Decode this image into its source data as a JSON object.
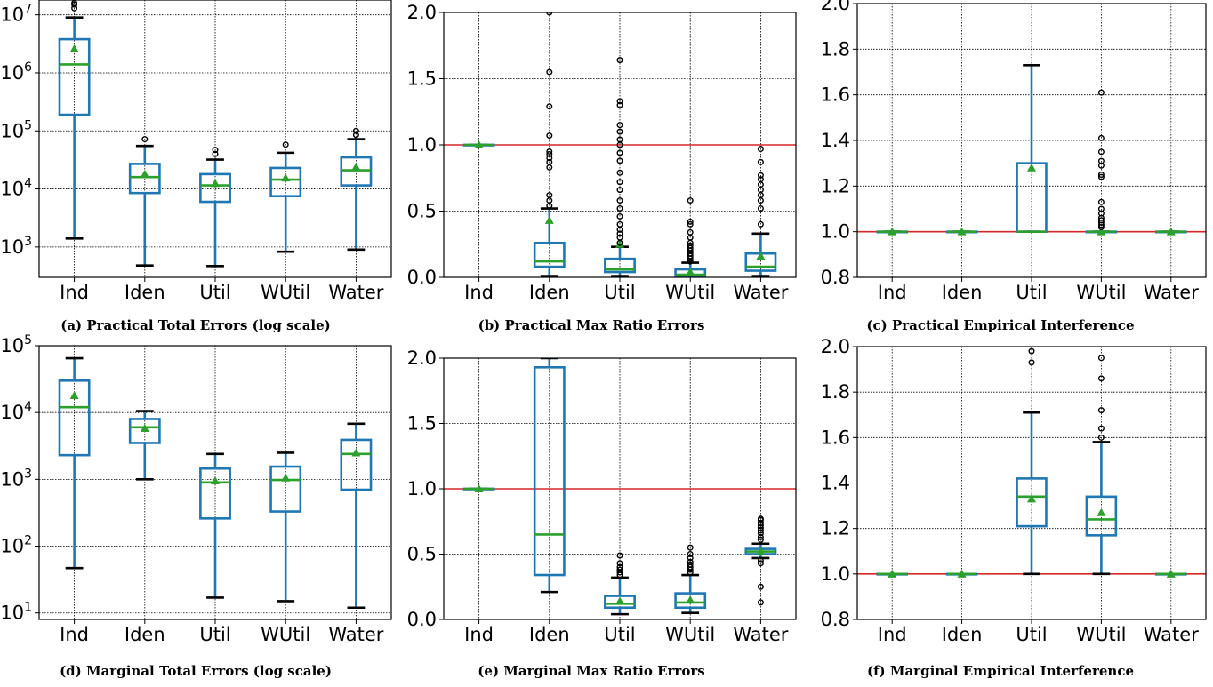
{
  "chart_data": [
    {
      "id": "a",
      "type": "box",
      "caption": "(a) Practical Total Errors (log scale)",
      "yscale": "log",
      "ylim": [
        300,
        18000000
      ],
      "yticks": [
        {
          "value": 1000,
          "base": "10",
          "exp": "3"
        },
        {
          "value": 10000,
          "base": "10",
          "exp": "4"
        },
        {
          "value": 100000,
          "base": "10",
          "exp": "5"
        },
        {
          "value": 1000000,
          "base": "10",
          "exp": "6"
        },
        {
          "value": 10000000,
          "base": "10",
          "exp": "7"
        }
      ],
      "ref_line": null,
      "grid": true,
      "categories": [
        "Ind",
        "Iden",
        "Util",
        "WUtil",
        "Water"
      ],
      "boxes": [
        {
          "whislo": 1400,
          "q1": 190000,
          "med": 1400000,
          "q3": 3800000,
          "whishi": 9000000,
          "mean": 2600000,
          "fliers": [
            13000000,
            15000000,
            16000000
          ]
        },
        {
          "whislo": 480,
          "q1": 8500,
          "med": 16000,
          "q3": 27000,
          "whishi": 55000,
          "mean": 18000,
          "fliers": [
            72000
          ]
        },
        {
          "whislo": 470,
          "q1": 6000,
          "med": 11500,
          "q3": 18000,
          "whishi": 32000,
          "mean": 12500,
          "fliers": [
            40000,
            47000
          ]
        },
        {
          "whislo": 830,
          "q1": 7500,
          "med": 14500,
          "q3": 23000,
          "whishi": 42000,
          "mean": 15500,
          "fliers": [
            58000
          ]
        },
        {
          "whislo": 900,
          "q1": 11500,
          "med": 21000,
          "q3": 35000,
          "whishi": 72000,
          "mean": 24000,
          "fliers": [
            85000,
            100000
          ]
        }
      ]
    },
    {
      "id": "b",
      "type": "box",
      "caption": "(b) Practical Max Ratio Errors",
      "yscale": "linear",
      "ylim": [
        0.0,
        2.0
      ],
      "yticks": [
        {
          "value": 0.0,
          "label": "0.0"
        },
        {
          "value": 0.5,
          "label": "0.5"
        },
        {
          "value": 1.0,
          "label": "1.0"
        },
        {
          "value": 1.5,
          "label": "1.5"
        },
        {
          "value": 2.0,
          "label": "2.0"
        }
      ],
      "ref_line": 1.0,
      "grid": true,
      "categories": [
        "Ind",
        "Iden",
        "Util",
        "WUtil",
        "Water"
      ],
      "boxes": [
        {
          "whislo": 1.0,
          "q1": 1.0,
          "med": 1.0,
          "q3": 1.0,
          "whishi": 1.0,
          "mean": 1.0,
          "fliers": []
        },
        {
          "whislo": 0.01,
          "q1": 0.08,
          "med": 0.12,
          "q3": 0.26,
          "whishi": 0.52,
          "mean": 0.43,
          "fliers": [
            0.54,
            0.58,
            0.62,
            0.83,
            0.87,
            0.9,
            0.93,
            0.95,
            1.07,
            1.29,
            1.55,
            2.0
          ]
        },
        {
          "whislo": 0.01,
          "q1": 0.04,
          "med": 0.06,
          "q3": 0.14,
          "whishi": 0.23,
          "mean": 0.25,
          "fliers": [
            0.26,
            0.3,
            0.33,
            0.36,
            0.4,
            0.46,
            0.52,
            0.58,
            0.66,
            0.72,
            0.79,
            0.88,
            0.94,
            1.0,
            1.04,
            1.1,
            1.15,
            1.3,
            1.33,
            1.64
          ]
        },
        {
          "whislo": 0.0,
          "q1": 0.01,
          "med": 0.02,
          "q3": 0.06,
          "whishi": 0.11,
          "mean": 0.04,
          "fliers": [
            0.12,
            0.14,
            0.16,
            0.18,
            0.2,
            0.22,
            0.24,
            0.26,
            0.3,
            0.34,
            0.4,
            0.42,
            0.58
          ]
        },
        {
          "whislo": 0.01,
          "q1": 0.05,
          "med": 0.08,
          "q3": 0.18,
          "whishi": 0.33,
          "mean": 0.16,
          "fliers": [
            0.4,
            0.52,
            0.58,
            0.62,
            0.66,
            0.7,
            0.74,
            0.77,
            0.87,
            0.97
          ]
        }
      ]
    },
    {
      "id": "c",
      "type": "box",
      "caption": "(c) Practical Empirical Interference",
      "yscale": "linear",
      "ylim": [
        0.8,
        2.0
      ],
      "yticks": [
        {
          "value": 0.8,
          "label": "0.8"
        },
        {
          "value": 1.0,
          "label": "1.0"
        },
        {
          "value": 1.2,
          "label": "1.2"
        },
        {
          "value": 1.4,
          "label": "1.4"
        },
        {
          "value": 1.6,
          "label": "1.6"
        },
        {
          "value": 1.8,
          "label": "1.8"
        },
        {
          "value": 2.0,
          "label": "2.0"
        }
      ],
      "ref_line": 1.0,
      "grid": true,
      "categories": [
        "Ind",
        "Iden",
        "Util",
        "WUtil",
        "Water"
      ],
      "boxes": [
        {
          "whislo": 1.0,
          "q1": 1.0,
          "med": 1.0,
          "q3": 1.0,
          "whishi": 1.0,
          "mean": 1.0,
          "fliers": []
        },
        {
          "whislo": 1.0,
          "q1": 1.0,
          "med": 1.0,
          "q3": 1.0,
          "whishi": 1.0,
          "mean": 1.0,
          "fliers": []
        },
        {
          "whislo": 1.0,
          "q1": 1.0,
          "med": 1.0,
          "q3": 1.3,
          "whishi": 1.73,
          "mean": 1.28,
          "fliers": []
        },
        {
          "whislo": 1.0,
          "q1": 1.0,
          "med": 1.0,
          "q3": 1.0,
          "whishi": 1.0,
          "mean": 1.0,
          "fliers": [
            1.02,
            1.03,
            1.04,
            1.05,
            1.06,
            1.08,
            1.1,
            1.13,
            1.24,
            1.25,
            1.29,
            1.31,
            1.35,
            1.41,
            1.61
          ]
        },
        {
          "whislo": 1.0,
          "q1": 1.0,
          "med": 1.0,
          "q3": 1.0,
          "whishi": 1.0,
          "mean": 1.0,
          "fliers": []
        }
      ]
    },
    {
      "id": "d",
      "type": "box",
      "caption": "(d) Marginal Total Errors (log scale)",
      "yscale": "log",
      "ylim": [
        8,
        100000
      ],
      "yticks": [
        {
          "value": 10,
          "base": "10",
          "exp": "1"
        },
        {
          "value": 100,
          "base": "10",
          "exp": "2"
        },
        {
          "value": 1000,
          "base": "10",
          "exp": "3"
        },
        {
          "value": 10000,
          "base": "10",
          "exp": "4"
        },
        {
          "value": 100000,
          "base": "10",
          "exp": "5"
        }
      ],
      "ref_line": null,
      "grid": true,
      "categories": [
        "Ind",
        "Iden",
        "Util",
        "WUtil",
        "Water"
      ],
      "boxes": [
        {
          "whislo": 47,
          "q1": 2300,
          "med": 12000,
          "q3": 30000,
          "whishi": 65000,
          "mean": 18000,
          "fliers": []
        },
        {
          "whislo": 1000,
          "q1": 3500,
          "med": 6000,
          "q3": 8000,
          "whishi": 10500,
          "mean": 5800,
          "fliers": []
        },
        {
          "whislo": 17,
          "q1": 260,
          "med": 900,
          "q3": 1450,
          "whishi": 2400,
          "mean": 950,
          "fliers": []
        },
        {
          "whislo": 15,
          "q1": 330,
          "med": 980,
          "q3": 1550,
          "whishi": 2500,
          "mean": 1050,
          "fliers": []
        },
        {
          "whislo": 12,
          "q1": 700,
          "med": 2400,
          "q3": 3900,
          "whishi": 6800,
          "mean": 2500,
          "fliers": []
        }
      ]
    },
    {
      "id": "e",
      "type": "box",
      "caption": "(e) Marginal Max Ratio Errors",
      "yscale": "linear",
      "ylim": [
        0.0,
        2.0
      ],
      "yticks": [
        {
          "value": 0.0,
          "label": "0.0"
        },
        {
          "value": 0.5,
          "label": "0.5"
        },
        {
          "value": 1.0,
          "label": "1.0"
        },
        {
          "value": 1.5,
          "label": "1.5"
        },
        {
          "value": 2.0,
          "label": "2.0"
        }
      ],
      "ref_line": 1.0,
      "grid": true,
      "categories": [
        "Ind",
        "Iden",
        "Util",
        "WUtil",
        "Water"
      ],
      "boxes": [
        {
          "whislo": 1.0,
          "q1": 1.0,
          "med": 1.0,
          "q3": 1.0,
          "whishi": 1.0,
          "mean": 1.0,
          "fliers": []
        },
        {
          "whislo": 0.21,
          "q1": 0.34,
          "med": 0.65,
          "q3": 1.93,
          "whishi": 2.0,
          "mean": null,
          "fliers": []
        },
        {
          "whislo": 0.04,
          "q1": 0.09,
          "med": 0.12,
          "q3": 0.18,
          "whishi": 0.32,
          "mean": 0.14,
          "fliers": [
            0.34,
            0.36,
            0.38,
            0.4,
            0.43,
            0.49
          ]
        },
        {
          "whislo": 0.05,
          "q1": 0.09,
          "med": 0.13,
          "q3": 0.2,
          "whishi": 0.34,
          "mean": 0.15,
          "fliers": [
            0.36,
            0.38,
            0.4,
            0.42,
            0.44,
            0.47,
            0.5,
            0.55
          ]
        },
        {
          "whislo": 0.47,
          "q1": 0.5,
          "med": 0.52,
          "q3": 0.54,
          "whishi": 0.58,
          "mean": 0.52,
          "fliers": [
            0.13,
            0.25,
            0.43,
            0.45,
            0.61,
            0.63,
            0.66,
            0.68,
            0.7,
            0.72,
            0.74,
            0.76,
            0.77
          ]
        }
      ]
    },
    {
      "id": "f",
      "type": "box",
      "caption": "(f) Marginal Empirical Interference",
      "yscale": "linear",
      "ylim": [
        0.8,
        2.0
      ],
      "yticks": [
        {
          "value": 0.8,
          "label": "0.8"
        },
        {
          "value": 1.0,
          "label": "1.0"
        },
        {
          "value": 1.2,
          "label": "1.2"
        },
        {
          "value": 1.4,
          "label": "1.4"
        },
        {
          "value": 1.6,
          "label": "1.6"
        },
        {
          "value": 1.8,
          "label": "1.8"
        },
        {
          "value": 2.0,
          "label": "2.0"
        }
      ],
      "ref_line": 1.0,
      "grid": true,
      "categories": [
        "Ind",
        "Iden",
        "Util",
        "WUtil",
        "Water"
      ],
      "boxes": [
        {
          "whislo": 1.0,
          "q1": 1.0,
          "med": 1.0,
          "q3": 1.0,
          "whishi": 1.0,
          "mean": 1.0,
          "fliers": []
        },
        {
          "whislo": 1.0,
          "q1": 1.0,
          "med": 1.0,
          "q3": 1.0,
          "whishi": 1.0,
          "mean": 1.0,
          "fliers": []
        },
        {
          "whislo": 1.0,
          "q1": 1.21,
          "med": 1.34,
          "q3": 1.42,
          "whishi": 1.71,
          "mean": 1.33,
          "fliers": [
            1.93,
            1.98
          ]
        },
        {
          "whislo": 1.0,
          "q1": 1.17,
          "med": 1.24,
          "q3": 1.34,
          "whishi": 1.58,
          "mean": 1.27,
          "fliers": [
            1.6,
            1.64,
            1.72,
            1.86,
            1.95
          ]
        },
        {
          "whislo": 1.0,
          "q1": 1.0,
          "med": 1.0,
          "q3": 1.0,
          "whishi": 1.0,
          "mean": 1.0,
          "fliers": []
        }
      ]
    }
  ],
  "colors": {
    "box": "#1f77b4",
    "median": "#2ca02c",
    "mean": "#2ca02c",
    "whisker_cap": "#000000",
    "ref_line": "#d62728",
    "grid": "#000000"
  }
}
